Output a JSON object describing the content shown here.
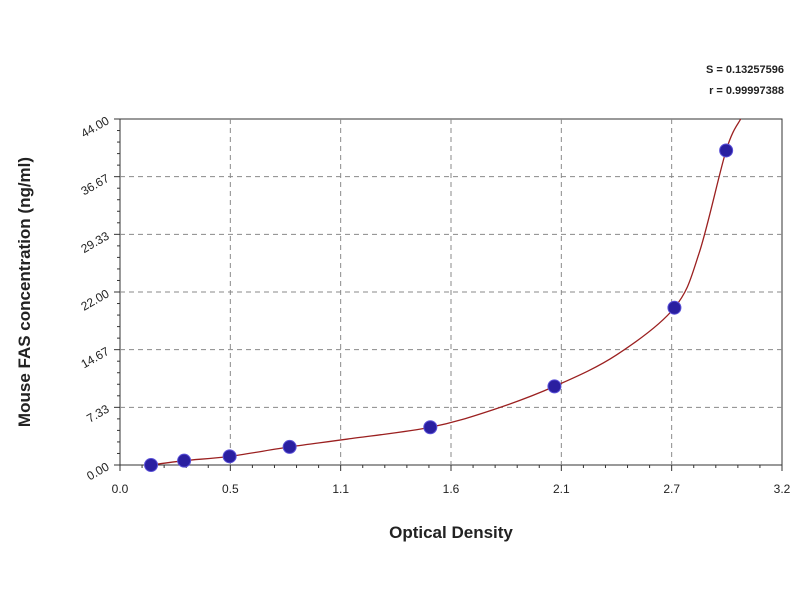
{
  "chart_data": {
    "type": "scatter",
    "title": "",
    "xlabel": "Optical Density",
    "ylabel": "Mouse FAS concentration (ng/ml)",
    "xlim": [
      0.0,
      3.2
    ],
    "ylim": [
      0.0,
      44.0
    ],
    "x_ticks": [
      "0.0",
      "0.5",
      "1.1",
      "1.6",
      "2.1",
      "2.7",
      "3.2"
    ],
    "y_ticks": [
      "0.00",
      "7.33",
      "14.67",
      "22.00",
      "29.33",
      "36.67",
      "44.00"
    ],
    "grid": true,
    "legend": "none",
    "series": [
      {
        "type": "scatter",
        "x": [
          0.15,
          0.31,
          0.53,
          0.82,
          1.5,
          2.1,
          2.68,
          2.93
        ],
        "y": [
          0.0,
          0.55,
          1.1,
          2.3,
          4.8,
          10.0,
          20.0,
          40.0
        ],
        "color": "#2a1fa0"
      },
      {
        "type": "line",
        "x": [
          0.15,
          0.31,
          0.53,
          0.82,
          1.1,
          1.5,
          1.8,
          2.1,
          2.4,
          2.68,
          2.8,
          2.93,
          3.0
        ],
        "y": [
          0.0,
          0.55,
          1.1,
          2.3,
          3.3,
          4.8,
          7.0,
          10.0,
          14.0,
          20.0,
          27.0,
          40.0,
          44.0
        ],
        "color": "#9b2020"
      }
    ],
    "annotations": [
      "S = 0.13257596",
      "r = 0.99997388"
    ]
  }
}
